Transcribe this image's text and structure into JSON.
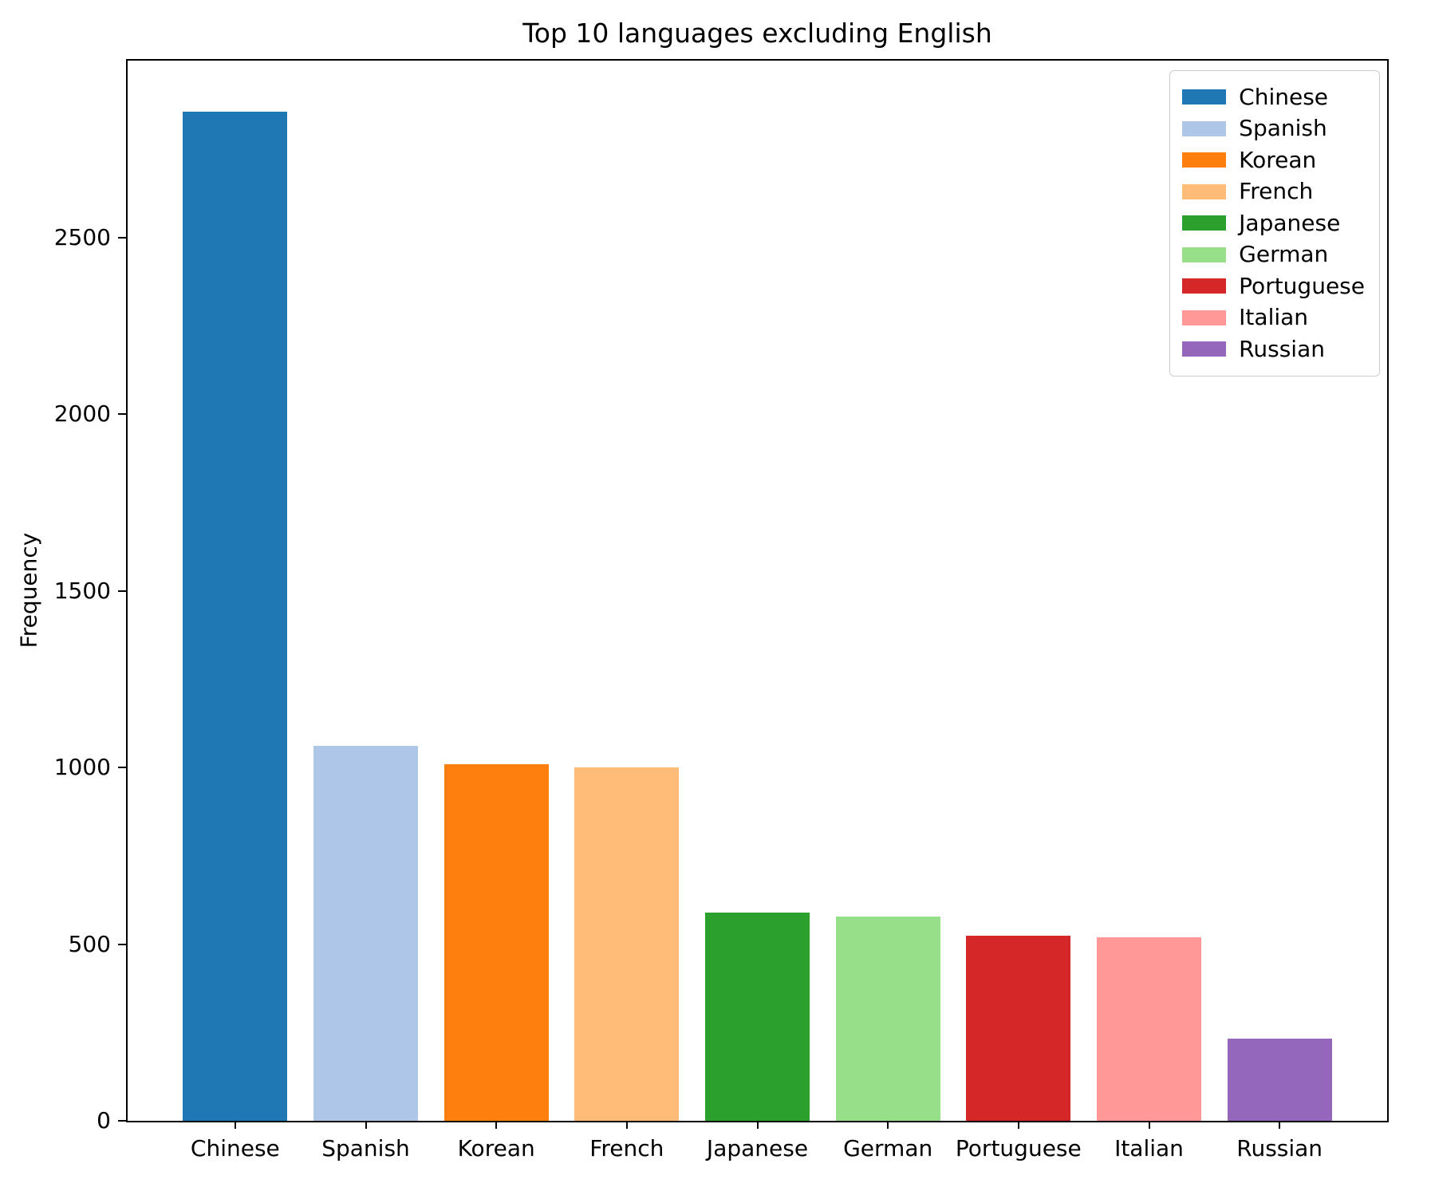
{
  "title": "Top 10 languages excluding English",
  "chart_data": {
    "type": "bar",
    "title": "Top 10 languages excluding English",
    "xlabel": "",
    "ylabel": "Frequency",
    "categories": [
      "Chinese",
      "Spanish",
      "Korean",
      "French",
      "Japanese",
      "German",
      "Portuguese",
      "Italian",
      "Russian"
    ],
    "values": [
      2855,
      1060,
      1010,
      1000,
      590,
      578,
      523,
      519,
      233
    ],
    "colors": [
      "#1f77b4",
      "#aec7e8",
      "#ff7f0e",
      "#ffbb78",
      "#2ca02c",
      "#98df8a",
      "#d62728",
      "#ff9896",
      "#9467bd"
    ],
    "ylim": [
      0,
      3000
    ],
    "yticks": [
      0,
      500,
      1000,
      1500,
      2000,
      2500
    ],
    "grid": false,
    "bar_width_fraction": 0.8,
    "legend": {
      "position": "upper right",
      "entries": [
        "Chinese",
        "Spanish",
        "Korean",
        "French",
        "Japanese",
        "German",
        "Portuguese",
        "Italian",
        "Russian"
      ]
    }
  }
}
